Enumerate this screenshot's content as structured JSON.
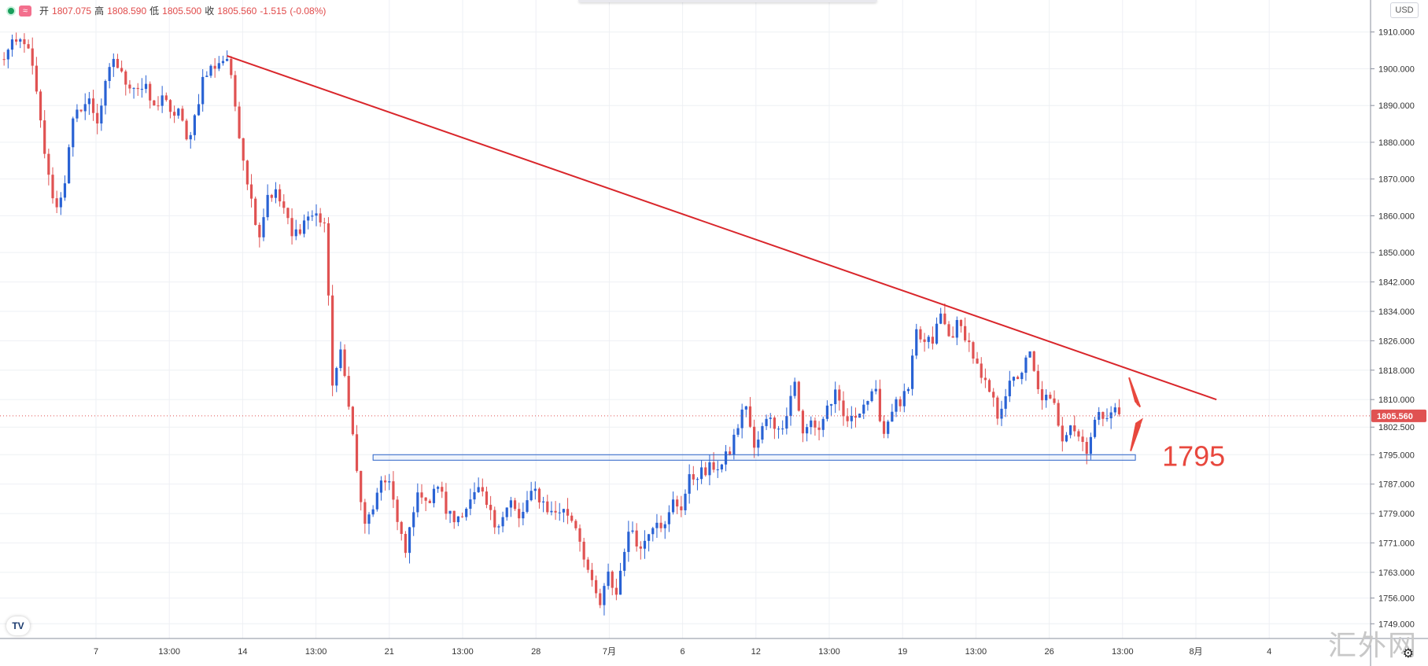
{
  "header": {
    "open_label": "开",
    "open": "1807.075",
    "high_label": "高",
    "high": "1808.590",
    "low_label": "低",
    "low": "1805.500",
    "close_label": "收",
    "close": "1805.560",
    "change": "-1.515",
    "change_pct": "(-0.08%)",
    "currency": "USD"
  },
  "watermark": "汇外网",
  "colors": {
    "up": "#2962d4",
    "down": "#e05252",
    "trendline": "#d9262b",
    "support": "#2a62c8",
    "annotation": "#e8483e"
  },
  "chart_data": {
    "type": "candlestick",
    "y_axis": {
      "ticks": [
        "1910.000",
        "1900.000",
        "1890.000",
        "1880.000",
        "1870.000",
        "1860.000",
        "1850.000",
        "1842.000",
        "1834.000",
        "1826.000",
        "1818.000",
        "1810.000",
        "1802.500",
        "1795.000",
        "1787.000",
        "1779.000",
        "1771.000",
        "1763.000",
        "1756.000",
        "1749.000"
      ],
      "tick_values": [
        1910,
        1900,
        1890,
        1880,
        1870,
        1860,
        1850,
        1842,
        1834,
        1826,
        1818,
        1810,
        1802.5,
        1795,
        1787,
        1779,
        1771,
        1763,
        1756,
        1749
      ],
      "range": [
        1745,
        1914
      ]
    },
    "x_axis": {
      "ticks": [
        "7",
        "13:00",
        "14",
        "13:00",
        "21",
        "13:00",
        "28",
        "7月",
        "6",
        "12",
        "13:00",
        "19",
        "13:00",
        "26",
        "13:00",
        "8月",
        "4"
      ],
      "range_bars": [
        0,
        338
      ]
    },
    "current_price": "1805.560",
    "support_label": "1795",
    "trendline": {
      "from": [
        56,
        1903.5
      ],
      "to": [
        300,
        1810
      ]
    },
    "support_zone": {
      "x_from": 92,
      "x_to": 280,
      "y_from": 1793.5,
      "y_to": 1795
    },
    "anchors": [
      [
        0,
        1902
      ],
      [
        3,
        1906
      ],
      [
        6,
        1908
      ],
      [
        8,
        1900
      ],
      [
        10,
        1885
      ],
      [
        12,
        1870
      ],
      [
        14,
        1862
      ],
      [
        16,
        1870
      ],
      [
        18,
        1885
      ],
      [
        20,
        1890
      ],
      [
        22,
        1891
      ],
      [
        24,
        1886
      ],
      [
        26,
        1895
      ],
      [
        28,
        1903
      ],
      [
        30,
        1898
      ],
      [
        32,
        1896
      ],
      [
        34,
        1895
      ],
      [
        36,
        1894
      ],
      [
        38,
        1889
      ],
      [
        40,
        1893
      ],
      [
        42,
        1887
      ],
      [
        44,
        1889
      ],
      [
        46,
        1880
      ],
      [
        48,
        1887
      ],
      [
        50,
        1897
      ],
      [
        52,
        1900
      ],
      [
        54,
        1902
      ],
      [
        56,
        1903
      ],
      [
        58,
        1890
      ],
      [
        60,
        1876
      ],
      [
        62,
        1864
      ],
      [
        64,
        1855
      ],
      [
        66,
        1866
      ],
      [
        68,
        1866
      ],
      [
        70,
        1862
      ],
      [
        72,
        1854
      ],
      [
        74,
        1857
      ],
      [
        76,
        1860
      ],
      [
        78,
        1860
      ],
      [
        80,
        1858
      ],
      [
        82,
        1815
      ],
      [
        84,
        1822
      ],
      [
        86,
        1810
      ],
      [
        88,
        1790
      ],
      [
        90,
        1775
      ],
      [
        92,
        1781
      ],
      [
        94,
        1786
      ],
      [
        96,
        1789
      ],
      [
        98,
        1776
      ],
      [
        100,
        1768
      ],
      [
        102,
        1781
      ],
      [
        104,
        1785
      ],
      [
        106,
        1782
      ],
      [
        108,
        1787
      ],
      [
        110,
        1780
      ],
      [
        112,
        1777
      ],
      [
        114,
        1780
      ],
      [
        116,
        1782
      ],
      [
        118,
        1785
      ],
      [
        120,
        1781
      ],
      [
        122,
        1776
      ],
      [
        124,
        1779
      ],
      [
        126,
        1782
      ],
      [
        128,
        1777
      ],
      [
        130,
        1782
      ],
      [
        132,
        1785
      ],
      [
        134,
        1782
      ],
      [
        136,
        1779
      ],
      [
        138,
        1780
      ],
      [
        140,
        1779
      ],
      [
        142,
        1776
      ],
      [
        144,
        1768
      ],
      [
        146,
        1759
      ],
      [
        148,
        1754
      ],
      [
        150,
        1762
      ],
      [
        152,
        1757
      ],
      [
        154,
        1770
      ],
      [
        156,
        1775
      ],
      [
        158,
        1769
      ],
      [
        160,
        1775
      ],
      [
        162,
        1778
      ],
      [
        164,
        1775
      ],
      [
        166,
        1782
      ],
      [
        168,
        1781
      ],
      [
        170,
        1788
      ],
      [
        172,
        1790
      ],
      [
        174,
        1790
      ],
      [
        176,
        1792
      ],
      [
        178,
        1792
      ],
      [
        180,
        1796
      ],
      [
        182,
        1803
      ],
      [
        184,
        1809
      ],
      [
        186,
        1796
      ],
      [
        188,
        1802
      ],
      [
        190,
        1806
      ],
      [
        192,
        1801
      ],
      [
        194,
        1807
      ],
      [
        196,
        1815
      ],
      [
        198,
        1800
      ],
      [
        200,
        1804
      ],
      [
        202,
        1802
      ],
      [
        204,
        1808
      ],
      [
        206,
        1811
      ],
      [
        208,
        1805
      ],
      [
        210,
        1804
      ],
      [
        212,
        1808
      ],
      [
        214,
        1810
      ],
      [
        216,
        1811
      ],
      [
        218,
        1801
      ],
      [
        220,
        1808
      ],
      [
        222,
        1809
      ],
      [
        224,
        1812
      ],
      [
        226,
        1828
      ],
      [
        228,
        1825
      ],
      [
        230,
        1826
      ],
      [
        232,
        1833
      ],
      [
        234,
        1827
      ],
      [
        236,
        1830
      ],
      [
        238,
        1828
      ],
      [
        240,
        1822
      ],
      [
        242,
        1815
      ],
      [
        244,
        1812
      ],
      [
        246,
        1806
      ],
      [
        248,
        1812
      ],
      [
        250,
        1815
      ],
      [
        252,
        1818
      ],
      [
        254,
        1822
      ],
      [
        256,
        1812
      ],
      [
        258,
        1810
      ],
      [
        260,
        1808
      ],
      [
        262,
        1800
      ],
      [
        264,
        1804
      ],
      [
        266,
        1800
      ],
      [
        268,
        1797
      ],
      [
        270,
        1804
      ],
      [
        272,
        1806
      ],
      [
        274,
        1807.5
      ],
      [
        276,
        1806
      ]
    ]
  }
}
